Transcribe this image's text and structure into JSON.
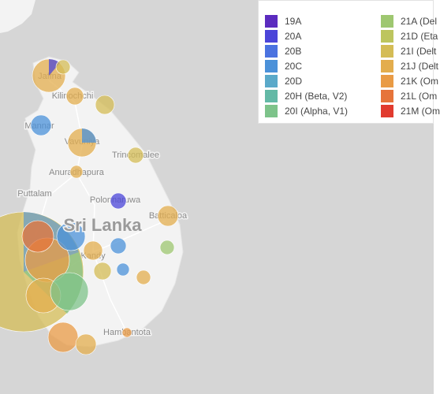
{
  "legend": [
    {
      "label": "19A",
      "color": "#5b2bbf"
    },
    {
      "label": "20A",
      "color": "#4b45d9"
    },
    {
      "label": "20B",
      "color": "#4a72e0"
    },
    {
      "label": "20C",
      "color": "#4b91d9"
    },
    {
      "label": "20D",
      "color": "#5aa9c9"
    },
    {
      "label": "20H (Beta, V2)",
      "color": "#63b9a6"
    },
    {
      "label": "20I (Alpha, V1)",
      "color": "#7dc38a"
    },
    {
      "label": "21A (Del",
      "color": "#9ec770"
    },
    {
      "label": "21D (Eta",
      "color": "#bdc55e"
    },
    {
      "label": "21I (Delt",
      "color": "#d4bc55"
    },
    {
      "label": "21J (Delt",
      "color": "#e3ad4d"
    },
    {
      "label": "21K (Om",
      "color": "#e99b45"
    },
    {
      "label": "21L (Om",
      "color": "#e6743a"
    },
    {
      "label": "21M (Om",
      "color": "#e13b2e"
    }
  ],
  "places": [
    "Jaffna",
    "Kilinochchi",
    "Mannar",
    "Vavuniya",
    "Trincomalee",
    "Anuradhapura",
    "Puttalam",
    "Polonnaruwa",
    "Batticaloa",
    "Kandy",
    "Hambantota"
  ],
  "country": "Sri Lanka"
}
